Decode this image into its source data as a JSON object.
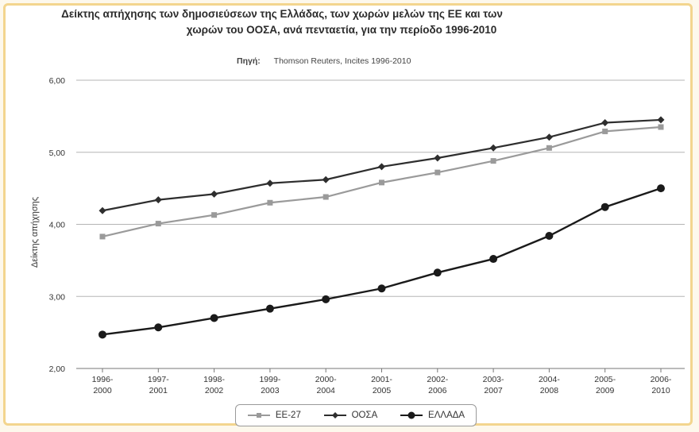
{
  "header": {
    "title_line1": "Δείκτης απήχησης των δημοσιεύσεων της Ελλάδας, των χωρών μελών της ΕΕ και των",
    "title_line2": "χωρών του ΟΟΣΑ, ανά πενταετία, για την περίοδο 1996-2010",
    "source_label": "Πηγή:",
    "source_text": "Thomson Reuters, Incites 1996-2010"
  },
  "chart_data": {
    "type": "line",
    "title": "Δείκτης απήχησης των δημοσιεύσεων της Ελλάδας, των χωρών μελών της ΕΕ και των χωρών του ΟΟΣΑ, ανά πενταετία, για την περίοδο 1996-2010",
    "xlabel": "",
    "ylabel": "Δείκτης απήχησης",
    "ylim": [
      2,
      6
    ],
    "yticks": [
      "2,00",
      "3,00",
      "4,00",
      "5,00",
      "6,00"
    ],
    "categories": [
      [
        "1996-",
        "2000"
      ],
      [
        "1997-",
        "2001"
      ],
      [
        "1998-",
        "2002"
      ],
      [
        "1999-",
        "2003"
      ],
      [
        "2000-",
        "2004"
      ],
      [
        "2001-",
        "2005"
      ],
      [
        "2002-",
        "2006"
      ],
      [
        "2003-",
        "2007"
      ],
      [
        "2004-",
        "2008"
      ],
      [
        "2005-",
        "2009"
      ],
      [
        "2006-",
        "2010"
      ]
    ],
    "grid": true,
    "legend_position": "bottom",
    "series": [
      {
        "name": "ΕΕ-27",
        "color": "#9a9a9a",
        "marker": "square",
        "values": [
          3.83,
          4.01,
          4.13,
          4.3,
          4.38,
          4.58,
          4.72,
          4.88,
          5.06,
          5.29,
          5.35
        ]
      },
      {
        "name": "ΟΟΣΑ",
        "color": "#2e2e2e",
        "marker": "diamond",
        "values": [
          4.19,
          4.34,
          4.42,
          4.57,
          4.62,
          4.8,
          4.92,
          5.06,
          5.21,
          5.41,
          5.45
        ]
      },
      {
        "name": "ΕΛΛΑΔΑ",
        "color": "#1a1a1a",
        "marker": "circle",
        "values": [
          2.47,
          2.57,
          2.7,
          2.83,
          2.96,
          3.11,
          3.33,
          3.52,
          3.84,
          4.24,
          4.5
        ]
      }
    ]
  }
}
